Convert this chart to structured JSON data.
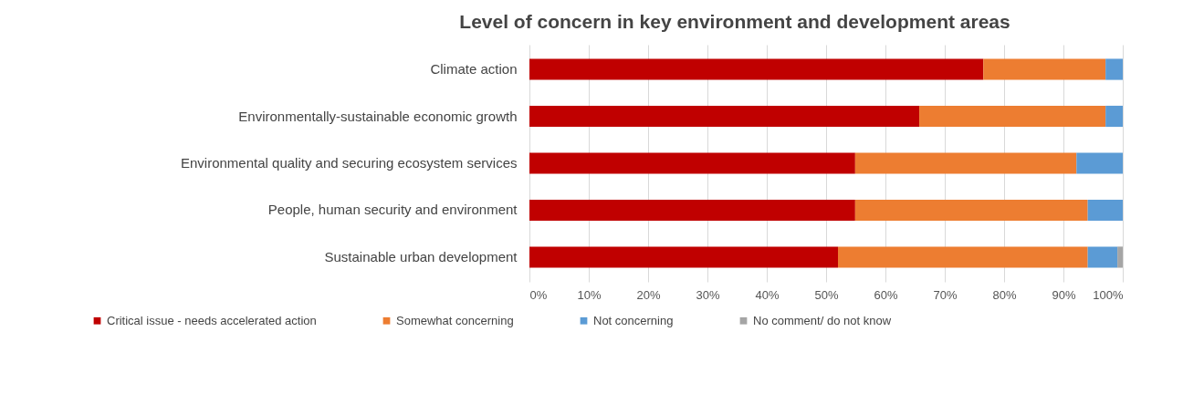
{
  "chart_data": {
    "type": "bar",
    "orientation": "horizontal",
    "stacked": true,
    "title": "Level of concern in key environment and development areas",
    "categories": [
      "Climate action",
      "Environmentally-sustainable economic growth",
      "Environmental quality and securing ecosystem services",
      "People, human security and environment",
      "Sustainable urban development"
    ],
    "series": [
      {
        "name": "Critical issue - needs accelerated action",
        "color": "#c00000",
        "values": [
          76.5,
          65.7,
          54.9,
          54.9,
          52.0
        ]
      },
      {
        "name": "Somewhat concerning",
        "color": "#ed7d31",
        "values": [
          20.6,
          31.4,
          37.3,
          39.2,
          42.1
        ]
      },
      {
        "name": "Not concerning",
        "color": "#5b9bd5",
        "values": [
          2.9,
          2.9,
          7.8,
          5.9,
          5.0
        ]
      },
      {
        "name": "No comment/ do not know",
        "color": "#a5a5a5",
        "values": [
          null,
          null,
          null,
          null,
          0.9
        ]
      }
    ],
    "xlim": [
      0,
      100
    ],
    "xticks": [
      {
        "value": 0,
        "label": "0%"
      },
      {
        "value": 10,
        "label": "10%"
      },
      {
        "value": 20,
        "label": "20%"
      },
      {
        "value": 30,
        "label": "30%"
      },
      {
        "value": 40,
        "label": "40%"
      },
      {
        "value": 50,
        "label": "50%"
      },
      {
        "value": 60,
        "label": "60%"
      },
      {
        "value": 70,
        "label": "70%"
      },
      {
        "value": 80,
        "label": "80%"
      },
      {
        "value": 90,
        "label": "90%"
      },
      {
        "value": 100,
        "label": "100%"
      }
    ],
    "grid": "x",
    "legend": "bottom"
  }
}
